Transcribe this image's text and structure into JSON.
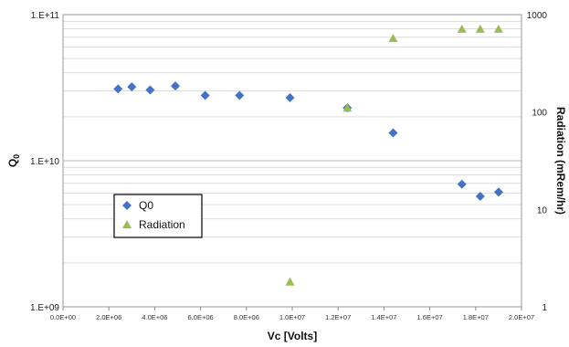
{
  "chart_data": {
    "type": "scatter",
    "xlabel": "Vc [Volts]",
    "ylabel_left": "Q",
    "ylabel_left_sub": "0",
    "ylabel_right": "Radiation (mRem/hr)",
    "xlim": [
      0,
      20000000
    ],
    "ylim_left": [
      1000000000,
      100000000000
    ],
    "ylim_right": [
      1,
      1000
    ],
    "log_y_left": true,
    "log_y_right": true,
    "grid": true,
    "legend_position": "left-middle",
    "x_ticks": [
      "0.0E+00",
      "2.0E+06",
      "4.0E+06",
      "6.0E+06",
      "8.0E+06",
      "1.0E+07",
      "1.2E+07",
      "1.4E+07",
      "1.6E+07",
      "1.8E+07",
      "2.0E+07"
    ],
    "y_left_ticks": [
      "1.E+09",
      "1.E+10",
      "1.E+11"
    ],
    "y_right_ticks": [
      "1",
      "10",
      "100",
      "1000"
    ],
    "series": [
      {
        "name": "Q0",
        "axis": "left",
        "marker": "diamond",
        "color": "#4472C4",
        "x": [
          2400000,
          3000000,
          3800000,
          4900000,
          6200000,
          7700000,
          9900000,
          12400000,
          14400000,
          17400000,
          18200000,
          19000000
        ],
        "y": [
          31000000000,
          32000000000,
          30500000000,
          32500000000,
          28000000000,
          28000000000,
          27000000000,
          23000000000,
          15500000000,
          6900000000,
          5700000000,
          6100000000
        ]
      },
      {
        "name": "Radiation",
        "axis": "right",
        "marker": "triangle",
        "color": "#9BBB59",
        "x": [
          9900000,
          12400000,
          14400000,
          17400000,
          18200000,
          19000000
        ],
        "y": [
          1.8,
          110,
          570,
          710,
          710,
          710
        ]
      }
    ]
  }
}
